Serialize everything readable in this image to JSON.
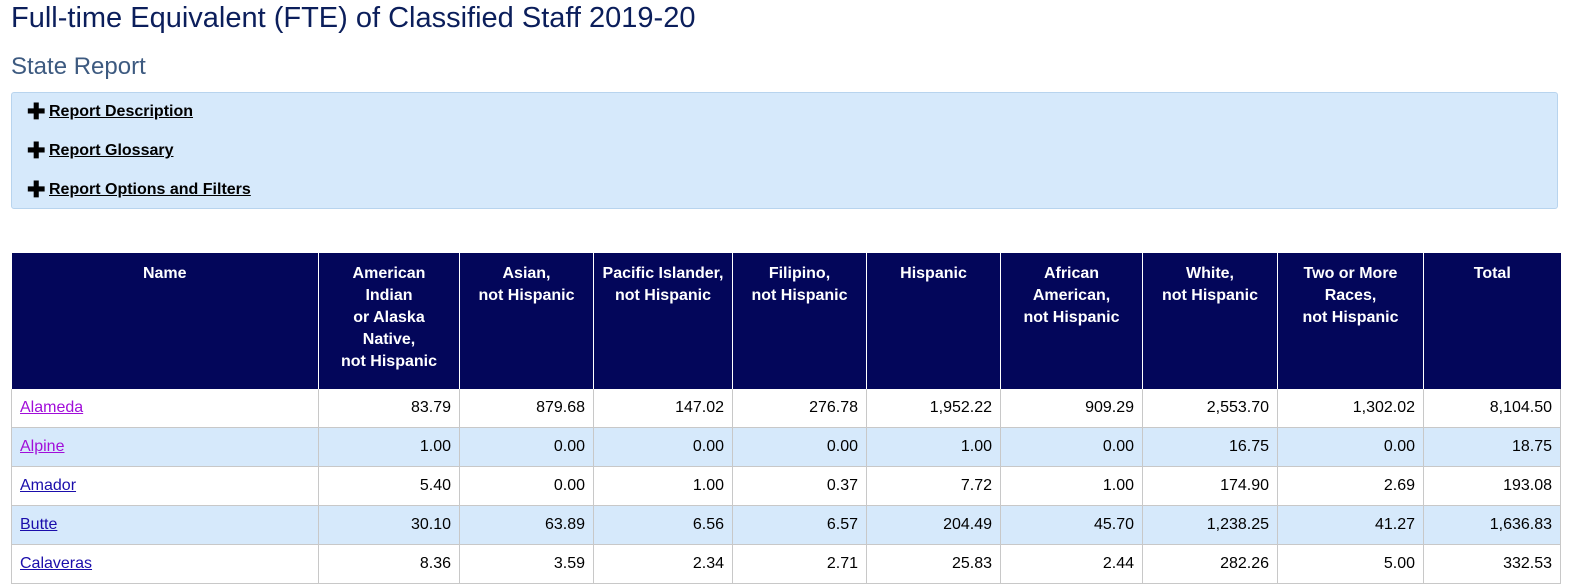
{
  "page": {
    "title": "Full-time Equivalent (FTE) of Classified Staff 2019-20",
    "subtitle": "State Report"
  },
  "accordion": {
    "items": [
      {
        "label": "Report Description",
        "icon": "plus-icon"
      },
      {
        "label": "Report Glossary",
        "icon": "plus-icon"
      },
      {
        "label": "Report Options and Filters",
        "icon": "plus-icon"
      }
    ]
  },
  "table": {
    "headers": [
      "Name",
      "American\nIndian\nor Alaska\nNative,\nnot Hispanic",
      "Asian,\nnot Hispanic",
      "Pacific Islander,\nnot Hispanic",
      "Filipino,\nnot Hispanic",
      "Hispanic",
      "African\nAmerican,\nnot Hispanic",
      "White,\nnot Hispanic",
      "Two or More\nRaces,\nnot Hispanic",
      "Total"
    ],
    "rows": [
      {
        "name": "Alameda",
        "visited": true,
        "values": [
          "83.79",
          "879.68",
          "147.02",
          "276.78",
          "1,952.22",
          "909.29",
          "2,553.70",
          "1,302.02",
          "8,104.50"
        ]
      },
      {
        "name": "Alpine",
        "visited": true,
        "values": [
          "1.00",
          "0.00",
          "0.00",
          "0.00",
          "1.00",
          "0.00",
          "16.75",
          "0.00",
          "18.75"
        ]
      },
      {
        "name": "Amador",
        "visited": false,
        "values": [
          "5.40",
          "0.00",
          "1.00",
          "0.37",
          "7.72",
          "1.00",
          "174.90",
          "2.69",
          "193.08"
        ]
      },
      {
        "name": "Butte",
        "visited": false,
        "values": [
          "30.10",
          "63.89",
          "6.56",
          "6.57",
          "204.49",
          "45.70",
          "1,238.25",
          "41.27",
          "1,636.83"
        ]
      },
      {
        "name": "Calaveras",
        "visited": false,
        "values": [
          "8.36",
          "3.59",
          "2.34",
          "2.71",
          "25.83",
          "2.44",
          "282.26",
          "5.00",
          "332.53"
        ]
      }
    ]
  },
  "colors": {
    "header_bg": "#03065a",
    "panel_bg": "#d6e9fb",
    "link": "#1a0dab",
    "link_visited": "#a10dd9"
  }
}
